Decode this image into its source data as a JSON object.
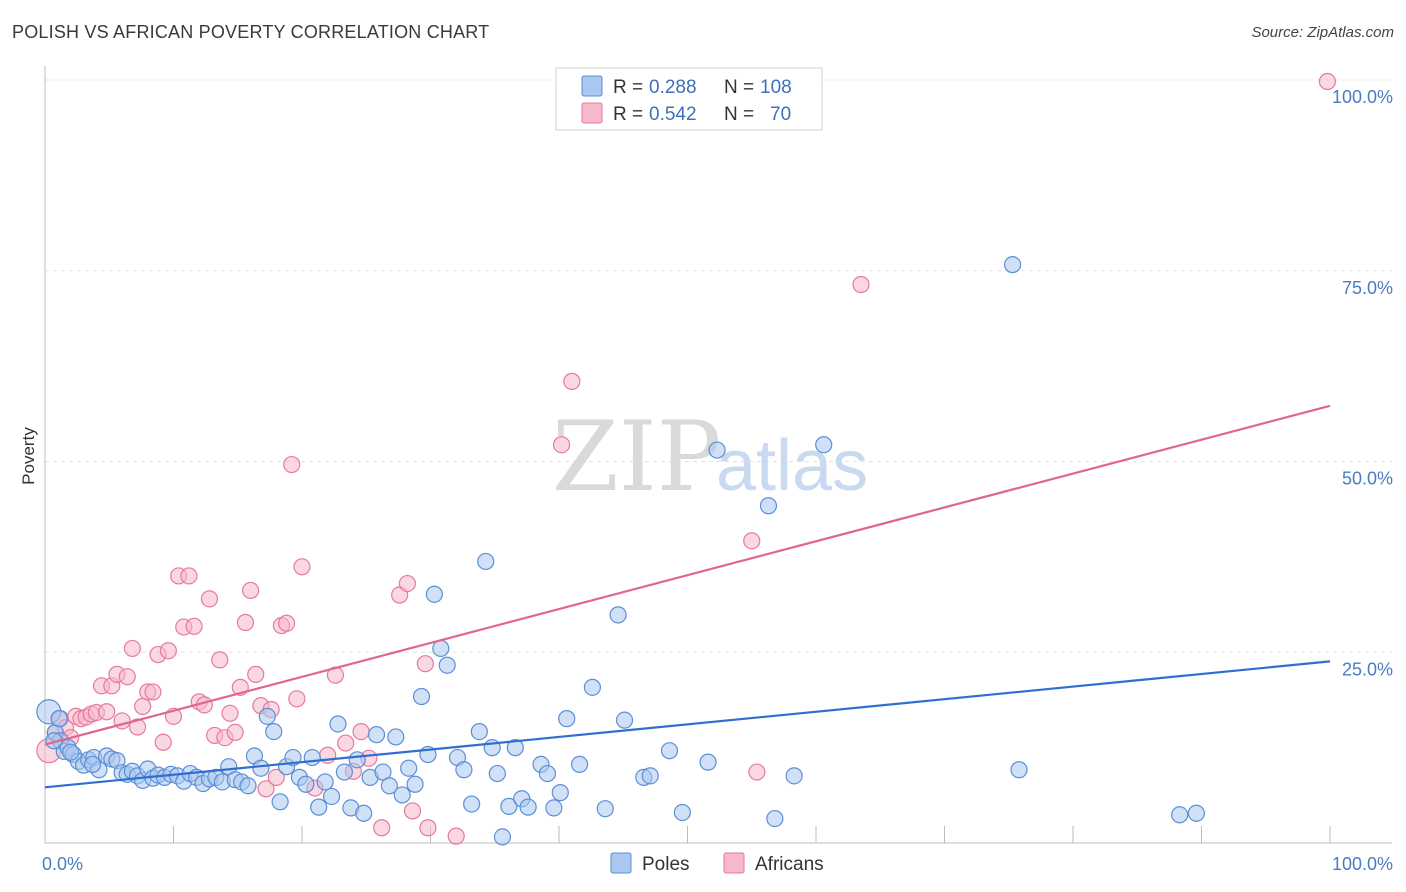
{
  "title": "POLISH VS AFRICAN POVERTY CORRELATION CHART",
  "source": "Source: ZipAtlas.com",
  "watermark": {
    "zip": "ZIP",
    "atlas": "atlas"
  },
  "colors": {
    "poles_fill": "#a9c7ef",
    "poles_stroke": "#5b8fd6",
    "poles_line": "#2f6fd0",
    "africans_fill": "#f6b8cb",
    "africans_stroke": "#e67a9c",
    "africans_line": "#e0668f"
  },
  "legend": {
    "rows": [
      {
        "r_label": "R =",
        "r_value": "0.288",
        "n_label": "N =",
        "n_value": "108"
      },
      {
        "r_label": "R =",
        "r_value": "0.542",
        "n_label": "N =",
        "n_value": "70"
      }
    ]
  },
  "chart_data": {
    "type": "scatter",
    "title": "POLISH VS AFRICAN POVERTY CORRELATION CHART",
    "xlabel": "",
    "ylabel": "Poverty",
    "xlim": [
      0,
      100
    ],
    "ylim": [
      0,
      100
    ],
    "x_tick_labels": [
      "0.0%",
      "100.0%"
    ],
    "y_ticks": [
      25,
      50,
      75,
      100
    ],
    "y_tick_labels": [
      "25.0%",
      "50.0%",
      "75.0%",
      "100.0%"
    ],
    "grid": true,
    "legend_position": "top-center",
    "series": [
      {
        "name": "Poles",
        "R": 0.288,
        "N": 108,
        "trend": {
          "x0": 0,
          "y0": 7.3,
          "x1": 100,
          "y1": 23.8
        },
        "points": [
          [
            0.3,
            17.2
          ],
          [
            0.8,
            14.5
          ],
          [
            1.2,
            13.4
          ],
          [
            1.5,
            12.0
          ],
          [
            1.8,
            12.5
          ],
          [
            2.2,
            11.6
          ],
          [
            2.6,
            10.7
          ],
          [
            3.0,
            10.2
          ],
          [
            3.4,
            10.9
          ],
          [
            3.8,
            11.2
          ],
          [
            4.2,
            9.6
          ],
          [
            4.8,
            11.4
          ],
          [
            5.2,
            11.0
          ],
          [
            5.6,
            10.8
          ],
          [
            6.0,
            9.2
          ],
          [
            6.4,
            9.0
          ],
          [
            6.8,
            9.4
          ],
          [
            7.2,
            8.8
          ],
          [
            7.6,
            8.2
          ],
          [
            8.0,
            9.7
          ],
          [
            8.4,
            8.5
          ],
          [
            8.8,
            8.9
          ],
          [
            9.3,
            8.6
          ],
          [
            9.8,
            9.0
          ],
          [
            10.3,
            8.8
          ],
          [
            10.8,
            8.1
          ],
          [
            11.3,
            9.1
          ],
          [
            11.8,
            8.6
          ],
          [
            12.3,
            7.8
          ],
          [
            12.8,
            8.4
          ],
          [
            13.3,
            8.6
          ],
          [
            13.8,
            8.0
          ],
          [
            14.3,
            10.0
          ],
          [
            14.8,
            8.3
          ],
          [
            15.3,
            8.0
          ],
          [
            15.8,
            7.5
          ],
          [
            16.3,
            11.4
          ],
          [
            16.8,
            9.8
          ],
          [
            17.3,
            16.6
          ],
          [
            17.8,
            14.6
          ],
          [
            18.3,
            5.4
          ],
          [
            18.8,
            10.0
          ],
          [
            19.3,
            11.2
          ],
          [
            19.8,
            8.6
          ],
          [
            20.3,
            7.7
          ],
          [
            20.8,
            11.2
          ],
          [
            21.3,
            4.7
          ],
          [
            21.8,
            8.0
          ],
          [
            22.3,
            6.1
          ],
          [
            22.8,
            15.6
          ],
          [
            23.3,
            9.3
          ],
          [
            23.8,
            4.6
          ],
          [
            24.3,
            10.9
          ],
          [
            24.8,
            3.9
          ],
          [
            25.3,
            8.6
          ],
          [
            25.8,
            14.2
          ],
          [
            26.3,
            9.3
          ],
          [
            26.8,
            7.5
          ],
          [
            27.3,
            13.9
          ],
          [
            27.8,
            6.3
          ],
          [
            28.3,
            9.8
          ],
          [
            28.8,
            7.7
          ],
          [
            29.3,
            19.2
          ],
          [
            29.8,
            11.6
          ],
          [
            30.3,
            32.6
          ],
          [
            30.8,
            25.5
          ],
          [
            31.3,
            23.3
          ],
          [
            32.1,
            11.2
          ],
          [
            32.6,
            9.6
          ],
          [
            33.2,
            5.1
          ],
          [
            33.8,
            14.6
          ],
          [
            34.3,
            36.9
          ],
          [
            34.8,
            12.5
          ],
          [
            35.2,
            9.1
          ],
          [
            35.6,
            0.8
          ],
          [
            36.1,
            4.8
          ],
          [
            36.6,
            12.5
          ],
          [
            37.1,
            5.8
          ],
          [
            37.6,
            4.7
          ],
          [
            38.6,
            10.3
          ],
          [
            39.1,
            9.1
          ],
          [
            39.6,
            4.6
          ],
          [
            40.1,
            6.6
          ],
          [
            40.6,
            16.3
          ],
          [
            41.6,
            10.3
          ],
          [
            42.6,
            20.4
          ],
          [
            43.6,
            4.5
          ],
          [
            44.6,
            29.9
          ],
          [
            45.1,
            16.1
          ],
          [
            46.6,
            8.6
          ],
          [
            47.1,
            8.8
          ],
          [
            48.6,
            12.1
          ],
          [
            49.6,
            4.0
          ],
          [
            51.6,
            10.6
          ],
          [
            52.3,
            51.5
          ],
          [
            56.3,
            44.2
          ],
          [
            56.8,
            3.2
          ],
          [
            58.3,
            8.8
          ],
          [
            60.6,
            52.2
          ],
          [
            75.3,
            75.8
          ],
          [
            75.8,
            9.6
          ],
          [
            88.3,
            3.7
          ],
          [
            89.6,
            3.9
          ],
          [
            0.7,
            13.4
          ],
          [
            1.1,
            16.3
          ],
          [
            2.0,
            11.9
          ],
          [
            3.7,
            10.3
          ]
        ]
      },
      {
        "name": "Africans",
        "R": 0.542,
        "N": 70,
        "trend": {
          "x0": 0,
          "y0": 12.9,
          "x1": 100,
          "y1": 57.3
        },
        "points": [
          [
            0.3,
            12.1
          ],
          [
            0.8,
            14.4
          ],
          [
            1.2,
            16.3
          ],
          [
            1.6,
            15.1
          ],
          [
            2.0,
            13.8
          ],
          [
            2.4,
            16.6
          ],
          [
            2.8,
            16.3
          ],
          [
            3.2,
            16.5
          ],
          [
            3.6,
            16.9
          ],
          [
            4.0,
            17.1
          ],
          [
            4.4,
            20.6
          ],
          [
            4.8,
            17.2
          ],
          [
            5.2,
            20.6
          ],
          [
            5.6,
            22.1
          ],
          [
            6.0,
            16.0
          ],
          [
            6.4,
            21.8
          ],
          [
            6.8,
            25.5
          ],
          [
            7.2,
            15.2
          ],
          [
            7.6,
            17.9
          ],
          [
            8.0,
            19.8
          ],
          [
            8.4,
            19.8
          ],
          [
            8.8,
            24.7
          ],
          [
            9.2,
            13.2
          ],
          [
            9.6,
            25.2
          ],
          [
            10.0,
            16.6
          ],
          [
            10.4,
            35.0
          ],
          [
            10.8,
            28.3
          ],
          [
            11.2,
            35.0
          ],
          [
            11.6,
            28.4
          ],
          [
            12.0,
            18.5
          ],
          [
            12.4,
            18.1
          ],
          [
            12.8,
            32.0
          ],
          [
            13.2,
            14.1
          ],
          [
            13.6,
            24.0
          ],
          [
            14.0,
            13.8
          ],
          [
            14.4,
            17.0
          ],
          [
            14.8,
            14.5
          ],
          [
            15.2,
            20.4
          ],
          [
            15.6,
            28.9
          ],
          [
            16.0,
            33.1
          ],
          [
            16.4,
            22.1
          ],
          [
            16.8,
            18.0
          ],
          [
            17.2,
            7.1
          ],
          [
            17.6,
            17.5
          ],
          [
            18.0,
            8.6
          ],
          [
            18.4,
            28.5
          ],
          [
            18.8,
            28.8
          ],
          [
            19.2,
            49.6
          ],
          [
            19.6,
            18.9
          ],
          [
            20.0,
            36.2
          ],
          [
            21.0,
            7.2
          ],
          [
            22.0,
            11.5
          ],
          [
            22.6,
            22.0
          ],
          [
            23.4,
            13.1
          ],
          [
            24.0,
            9.4
          ],
          [
            24.6,
            14.6
          ],
          [
            25.2,
            11.1
          ],
          [
            26.2,
            2.0
          ],
          [
            27.6,
            32.5
          ],
          [
            28.2,
            34.0
          ],
          [
            28.6,
            4.2
          ],
          [
            29.6,
            23.5
          ],
          [
            29.8,
            2.0
          ],
          [
            32.0,
            0.9
          ],
          [
            40.2,
            52.2
          ],
          [
            41.0,
            60.5
          ],
          [
            55.0,
            39.6
          ],
          [
            55.4,
            9.3
          ],
          [
            63.5,
            73.2
          ],
          [
            99.8,
            99.8
          ]
        ]
      }
    ]
  },
  "bottom_legend": {
    "poles": "Poles",
    "africans": "Africans"
  }
}
